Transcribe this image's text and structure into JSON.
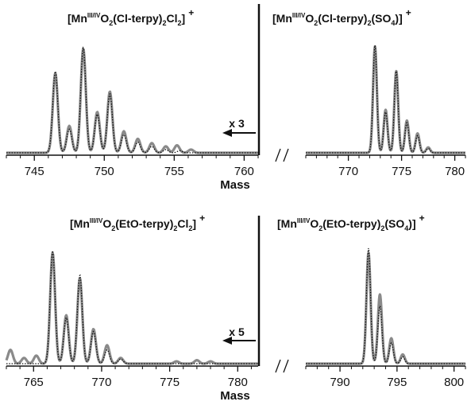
{
  "chart_data": [
    {
      "type": "line",
      "panel": "top",
      "xlabel": "Mass",
      "left_segment": {
        "xlim": [
          743,
          761
        ],
        "ticks": [
          745,
          750,
          755,
          760
        ]
      },
      "right_segment": {
        "xlim": [
          766,
          781
        ],
        "ticks": [
          770,
          775,
          780
        ]
      },
      "left_title": {
        "pre": "[Mn",
        "sup": "III/IV",
        "parts": [
          [
            "O",
            ""
          ],
          [
            "2",
            "sub"
          ],
          [
            "(Cl-terpy)",
            ""
          ],
          [
            "2",
            "sub"
          ],
          [
            "Cl",
            ""
          ],
          [
            "2",
            "sub"
          ],
          [
            "]",
            ""
          ]
        ],
        "charge": "+"
      },
      "right_title": {
        "pre": "[Mn",
        "sup": "III/IV",
        "parts": [
          [
            "O",
            ""
          ],
          [
            "2",
            "sub"
          ],
          [
            "(Cl-terpy)",
            ""
          ],
          [
            "2",
            "sub"
          ],
          [
            "(SO",
            ""
          ],
          [
            "4",
            "sub"
          ],
          [
            ")]",
            ""
          ]
        ],
        "charge": "+"
      },
      "scale_annotation": "x 3",
      "series": [
        {
          "segment": "left",
          "style": "experimental",
          "peaks": [
            [
              746.5,
              0.74
            ],
            [
              747.5,
              0.25
            ],
            [
              748.5,
              0.97
            ],
            [
              749.5,
              0.38
            ],
            [
              750.4,
              0.57
            ],
            [
              751.4,
              0.2
            ],
            [
              752.4,
              0.13
            ],
            [
              753.4,
              0.09
            ],
            [
              754.4,
              0.06
            ],
            [
              755.2,
              0.07
            ],
            [
              756.2,
              0.03
            ]
          ]
        },
        {
          "segment": "left",
          "style": "simulated",
          "peaks": [
            [
              746.5,
              0.76
            ],
            [
              747.5,
              0.22
            ],
            [
              748.5,
              0.98
            ],
            [
              749.5,
              0.36
            ],
            [
              750.4,
              0.55
            ],
            [
              751.4,
              0.17
            ],
            [
              752.4,
              0.1
            ],
            [
              753.4,
              0.06
            ],
            [
              754.4,
              0.03
            ],
            [
              755.4,
              0.02
            ]
          ]
        },
        {
          "segment": "right",
          "style": "experimental",
          "peaks": [
            [
              772.5,
              0.99
            ],
            [
              773.5,
              0.4
            ],
            [
              774.5,
              0.76
            ],
            [
              775.5,
              0.3
            ],
            [
              776.5,
              0.18
            ],
            [
              777.5,
              0.05
            ]
          ]
        },
        {
          "segment": "right",
          "style": "simulated",
          "peaks": [
            [
              772.5,
              1.0
            ],
            [
              773.5,
              0.38
            ],
            [
              774.5,
              0.76
            ],
            [
              775.5,
              0.28
            ],
            [
              776.5,
              0.16
            ],
            [
              777.5,
              0.04
            ]
          ]
        }
      ]
    },
    {
      "type": "line",
      "panel": "bottom",
      "xlabel": "Mass",
      "left_segment": {
        "xlim": [
          763,
          781.5
        ],
        "ticks": [
          765,
          770,
          775,
          780
        ]
      },
      "right_segment": {
        "xlim": [
          787,
          801
        ],
        "ticks": [
          790,
          795,
          800
        ]
      },
      "left_title": {
        "pre": "[Mn",
        "sup": "III/IV",
        "parts": [
          [
            "O",
            ""
          ],
          [
            "2",
            "sub"
          ],
          [
            "(EtO-terpy)",
            ""
          ],
          [
            "2",
            "sub"
          ],
          [
            "Cl",
            ""
          ],
          [
            "2",
            "sub"
          ],
          [
            "]",
            ""
          ]
        ],
        "charge": "+"
      },
      "right_title": {
        "pre": "[Mn",
        "sup": "III/IV",
        "parts": [
          [
            "O",
            ""
          ],
          [
            "2",
            "sub"
          ],
          [
            "(EtO-terpy)",
            ""
          ],
          [
            "2",
            "sub"
          ],
          [
            "(SO",
            ""
          ],
          [
            "4",
            "sub"
          ],
          [
            ")]",
            ""
          ]
        ],
        "charge": "+"
      },
      "scale_annotation": "x 5",
      "series": [
        {
          "segment": "left",
          "style": "experimental",
          "peaks": [
            [
              763.3,
              0.12
            ],
            [
              764.3,
              0.05
            ],
            [
              765.2,
              0.07
            ],
            [
              766.4,
              0.96
            ],
            [
              767.4,
              0.42
            ],
            [
              768.4,
              0.74
            ],
            [
              769.4,
              0.3
            ],
            [
              770.4,
              0.16
            ],
            [
              771.4,
              0.05
            ],
            [
              775.5,
              0.02
            ],
            [
              777.0,
              0.03
            ],
            [
              778.0,
              0.02
            ]
          ]
        },
        {
          "segment": "left",
          "style": "simulated",
          "peaks": [
            [
              766.4,
              0.98
            ],
            [
              767.4,
              0.4
            ],
            [
              768.4,
              0.77
            ],
            [
              769.4,
              0.28
            ],
            [
              770.4,
              0.12
            ],
            [
              771.4,
              0.04
            ]
          ]
        },
        {
          "segment": "right",
          "style": "experimental",
          "peaks": [
            [
              792.5,
              0.96
            ],
            [
              793.5,
              0.6
            ],
            [
              794.5,
              0.22
            ],
            [
              795.5,
              0.08
            ]
          ]
        },
        {
          "segment": "right",
          "style": "simulated",
          "peaks": [
            [
              792.5,
              1.0
            ],
            [
              793.5,
              0.5
            ],
            [
              794.5,
              0.18
            ],
            [
              795.5,
              0.06
            ]
          ]
        }
      ]
    }
  ]
}
